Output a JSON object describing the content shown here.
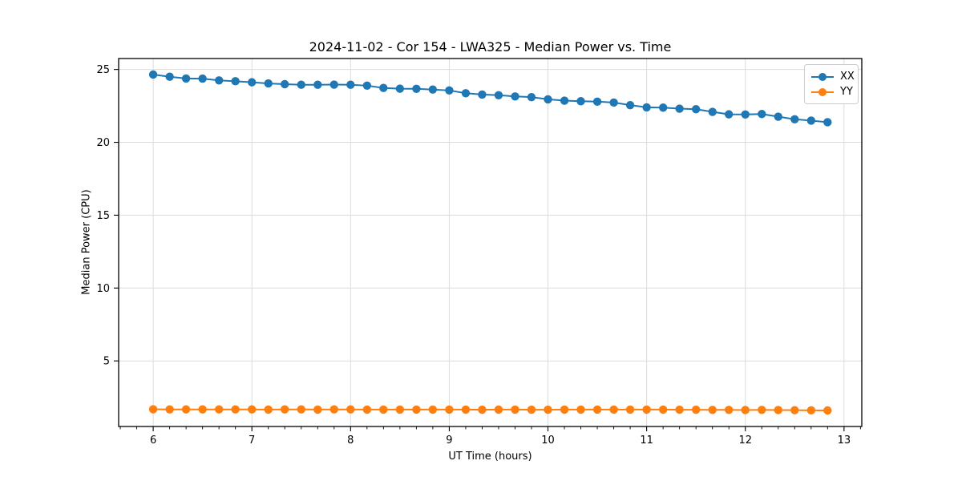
{
  "figure": {
    "background_color": "#ffffff",
    "frame_color": "#000000",
    "grid_color": "#dcdcdc"
  },
  "chart_data": {
    "type": "line",
    "title": "2024-11-02 - Cor 154 - LWA325 - Median Power vs. Time",
    "xlabel": "UT Time (hours)",
    "ylabel": "Median Power (CPU)",
    "xlim": [
      5.65,
      13.18
    ],
    "ylim": [
      0.5,
      25.75
    ],
    "xticks": [
      6,
      7,
      8,
      9,
      10,
      11,
      12,
      13
    ],
    "yticks": [
      5,
      10,
      15,
      20,
      25
    ],
    "x_minor_tick_step_hours": 0.1667,
    "grid": true,
    "legend_position": "upper-right",
    "x": [
      6.0,
      6.167,
      6.333,
      6.5,
      6.667,
      6.833,
      7.0,
      7.167,
      7.333,
      7.5,
      7.667,
      7.833,
      8.0,
      8.167,
      8.333,
      8.5,
      8.667,
      8.833,
      9.0,
      9.167,
      9.333,
      9.5,
      9.667,
      9.833,
      10.0,
      10.167,
      10.333,
      10.5,
      10.667,
      10.833,
      11.0,
      11.167,
      11.333,
      11.5,
      11.667,
      11.833,
      12.0,
      12.167,
      12.333,
      12.5,
      12.667,
      12.833
    ],
    "series": [
      {
        "name": "XX",
        "color": "#1f77b4",
        "values": [
          24.65,
          24.5,
          24.38,
          24.37,
          24.25,
          24.19,
          24.12,
          24.04,
          23.99,
          23.95,
          23.95,
          23.96,
          23.95,
          23.89,
          23.73,
          23.68,
          23.67,
          23.62,
          23.56,
          23.37,
          23.28,
          23.23,
          23.15,
          23.1,
          22.95,
          22.86,
          22.82,
          22.79,
          22.73,
          22.55,
          22.4,
          22.38,
          22.31,
          22.27,
          22.09,
          21.92,
          21.91,
          21.94,
          21.76,
          21.58,
          21.49,
          21.38
        ]
      },
      {
        "name": "YY",
        "color": "#ff7f0e",
        "values": [
          1.68,
          1.67,
          1.67,
          1.67,
          1.67,
          1.67,
          1.67,
          1.66,
          1.67,
          1.67,
          1.66,
          1.67,
          1.67,
          1.66,
          1.66,
          1.66,
          1.66,
          1.66,
          1.66,
          1.66,
          1.65,
          1.66,
          1.66,
          1.65,
          1.65,
          1.66,
          1.66,
          1.66,
          1.66,
          1.66,
          1.66,
          1.66,
          1.65,
          1.65,
          1.64,
          1.64,
          1.63,
          1.64,
          1.63,
          1.62,
          1.61,
          1.6
        ]
      }
    ]
  }
}
